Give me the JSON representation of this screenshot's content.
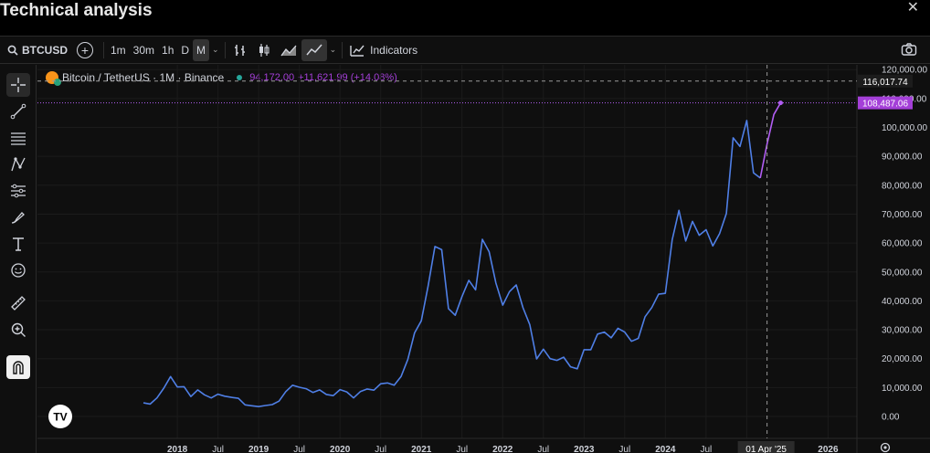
{
  "page_title": "Technical analysis",
  "close_label": "✕",
  "toolbar": {
    "symbol": "BTCUSD",
    "intervals": [
      "1m",
      "30m",
      "1h",
      "D",
      "M"
    ],
    "active_interval": "M",
    "indicators_label": "Indicators",
    "chevron": "⌄"
  },
  "legend": {
    "pair": "Bitcoin / TetherUS · 1M · Binance",
    "value": "94,172.00",
    "change": "+11,621.99 (+14.08%)"
  },
  "colors": {
    "line_primary": "#4f7fe6",
    "line_forecast": "#b25ef4",
    "crosshair_label": "#a43fd8"
  },
  "chart_data": {
    "type": "line",
    "xlabel": "",
    "ylabel": "",
    "ylim": [
      0,
      120000
    ],
    "grid": true,
    "y_ticks": [
      0,
      10000,
      20000,
      30000,
      40000,
      50000,
      60000,
      70000,
      80000,
      90000,
      100000,
      110000,
      120000
    ],
    "y_tick_labels": [
      "0.00",
      "10,000.00",
      "20,000.00",
      "30,000.00",
      "40,000.00",
      "50,000.00",
      "60,000.00",
      "70,000.00",
      "80,000.00",
      "90,000.00",
      "100,000.00",
      "110,000.00",
      "120,000.00"
    ],
    "x_tick_labels": [
      "2018",
      "Jul",
      "2019",
      "Jul",
      "2020",
      "Jul",
      "2021",
      "Jul",
      "2022",
      "Jul",
      "2023",
      "Jul",
      "2024",
      "Jul",
      "2",
      "2026"
    ],
    "x_tick_dates": [
      "2018-01",
      "2018-07",
      "2019-01",
      "2019-07",
      "2020-01",
      "2020-07",
      "2021-01",
      "2021-07",
      "2022-01",
      "2022-07",
      "2023-01",
      "2023-07",
      "2024-01",
      "2024-07",
      "2025-01",
      "2026-01"
    ],
    "series": [
      {
        "dates": [
          "2017-08",
          "2017-09",
          "2017-10",
          "2017-11",
          "2017-12",
          "2018-01",
          "2018-02",
          "2018-03",
          "2018-04",
          "2018-05",
          "2018-06",
          "2018-07",
          "2018-08",
          "2018-09",
          "2018-10",
          "2018-11",
          "2018-12",
          "2019-01",
          "2019-02",
          "2019-03",
          "2019-04",
          "2019-05",
          "2019-06",
          "2019-07",
          "2019-08",
          "2019-09",
          "2019-10",
          "2019-11",
          "2019-12",
          "2020-01",
          "2020-02",
          "2020-03",
          "2020-04",
          "2020-05",
          "2020-06",
          "2020-07",
          "2020-08",
          "2020-09",
          "2020-10",
          "2020-11",
          "2020-12",
          "2021-01",
          "2021-02",
          "2021-03",
          "2021-04",
          "2021-05",
          "2021-06",
          "2021-07",
          "2021-08",
          "2021-09",
          "2021-10",
          "2021-11",
          "2021-12",
          "2022-01",
          "2022-02",
          "2022-03",
          "2022-04",
          "2022-05",
          "2022-06",
          "2022-07",
          "2022-08",
          "2022-09",
          "2022-10",
          "2022-11",
          "2022-12",
          "2023-01",
          "2023-02",
          "2023-03",
          "2023-04",
          "2023-05",
          "2023-06",
          "2023-07",
          "2023-08",
          "2023-09",
          "2023-10",
          "2023-11",
          "2023-12",
          "2024-01",
          "2024-02",
          "2024-03",
          "2024-04",
          "2024-05",
          "2024-06",
          "2024-07",
          "2024-08",
          "2024-09",
          "2024-10",
          "2024-11",
          "2024-12",
          "2025-01",
          "2025-02",
          "2025-03"
        ],
        "values": [
          4700,
          4300,
          6400,
          9800,
          13800,
          10200,
          10300,
          6900,
          9200,
          7500,
          6400,
          7700,
          7000,
          6600,
          6300,
          4000,
          3700,
          3400,
          3800,
          4100,
          5300,
          8600,
          10800,
          10100,
          9600,
          8300,
          9200,
          7600,
          7200,
          9300,
          8500,
          6400,
          8600,
          9500,
          9100,
          11300,
          11600,
          10800,
          13800,
          19700,
          28900,
          33100,
          45100,
          58800,
          57700,
          37300,
          35000,
          41500,
          47100,
          43800,
          61300,
          57000,
          46200,
          38500,
          43200,
          45500,
          37600,
          31800,
          19900,
          23300,
          20000,
          19400,
          20500,
          17200,
          16500,
          23100,
          23100,
          28500,
          29200,
          27200,
          30500,
          29200,
          26000,
          27000,
          34500,
          37700,
          42300,
          42600,
          61100,
          71300,
          60700,
          67500,
          62700,
          64600,
          59000,
          63300,
          70200,
          96400,
          93400,
          102400,
          84300,
          82500
        ]
      },
      {
        "dates": [
          "2025-03",
          "2025-04",
          "2025-05",
          "2025-06"
        ],
        "values": [
          82500,
          94172,
          104500,
          108487.06
        ]
      }
    ],
    "price_labels": {
      "crosshair_price": "116,017.74",
      "last_price": "108,487.06",
      "crosshair_date": "01 Apr '25"
    },
    "watermark": "TV"
  }
}
